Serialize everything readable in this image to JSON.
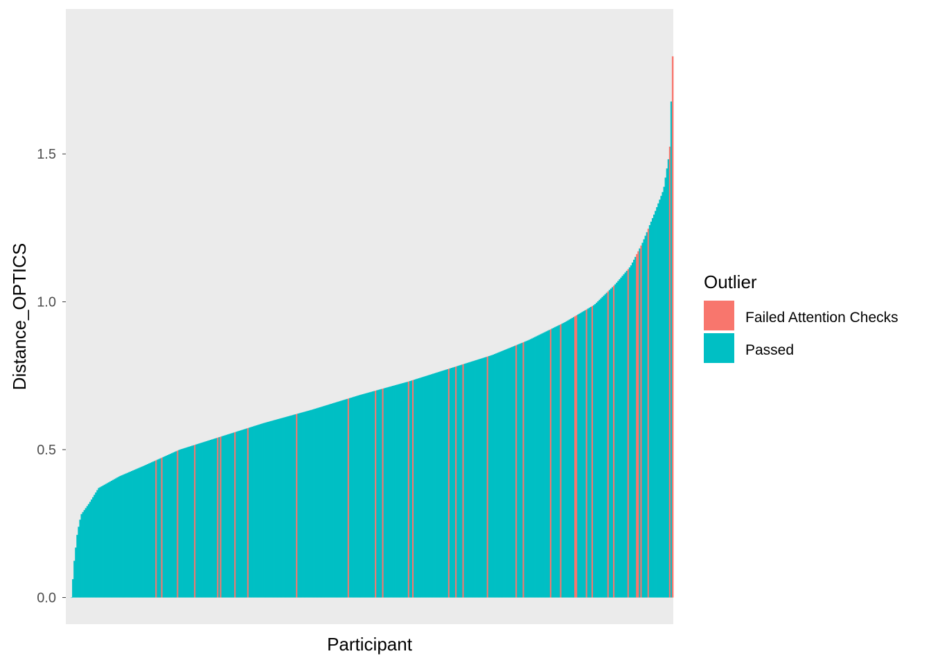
{
  "chart_data": {
    "type": "bar",
    "title": "",
    "xlabel": "Participant",
    "ylabel": "Distance_OPTICS",
    "ylim": [
      -0.09,
      1.99
    ],
    "y_ticks": [
      {
        "value": 0.0,
        "label": "0.0"
      },
      {
        "value": 0.5,
        "label": "0.5"
      },
      {
        "value": 1.0,
        "label": "1.0"
      },
      {
        "value": 1.5,
        "label": "1.5"
      }
    ],
    "x_ticks": [],
    "sorted": "ascending",
    "n_participants": 420,
    "value_profile": [
      [
        0.0,
        0.0
      ],
      [
        0.005,
        0.13
      ],
      [
        0.01,
        0.22
      ],
      [
        0.016,
        0.28
      ],
      [
        0.03,
        0.32
      ],
      [
        0.045,
        0.37
      ],
      [
        0.08,
        0.41
      ],
      [
        0.12,
        0.445
      ],
      [
        0.18,
        0.5
      ],
      [
        0.25,
        0.545
      ],
      [
        0.32,
        0.59
      ],
      [
        0.4,
        0.635
      ],
      [
        0.48,
        0.685
      ],
      [
        0.56,
        0.73
      ],
      [
        0.63,
        0.775
      ],
      [
        0.7,
        0.82
      ],
      [
        0.76,
        0.87
      ],
      [
        0.82,
        0.93
      ],
      [
        0.87,
        0.99
      ],
      [
        0.905,
        1.06
      ],
      [
        0.93,
        1.12
      ],
      [
        0.95,
        1.2
      ],
      [
        0.97,
        1.3
      ],
      [
        0.985,
        1.38
      ],
      [
        0.995,
        1.51
      ],
      [
        1.0,
        1.83
      ]
    ],
    "failed_fraction": 0.09,
    "legend": {
      "title": "Outlier",
      "position": "right",
      "entries": [
        {
          "label": "Failed Attention Checks",
          "color": "#F8766D"
        },
        {
          "label": "Passed",
          "color": "#00BFC4"
        }
      ]
    },
    "panel_background": "#EBEBEB",
    "grid": false
  }
}
